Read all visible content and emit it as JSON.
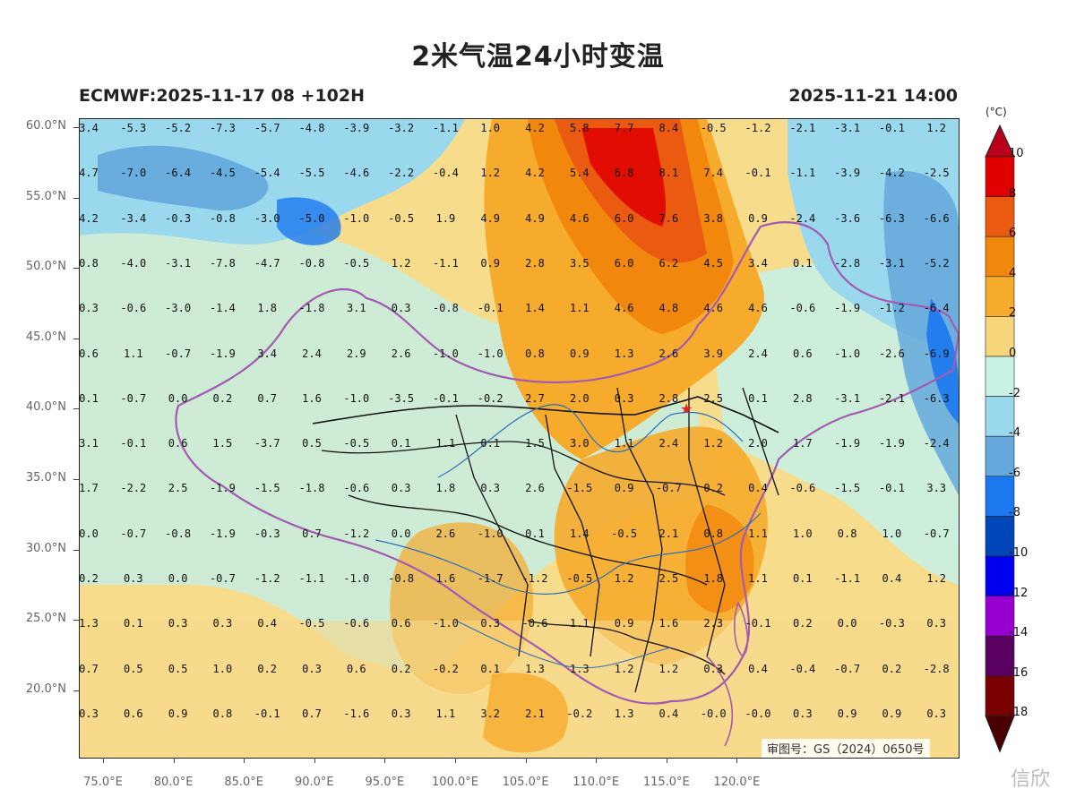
{
  "title": "2米气温24小时变温",
  "run_info": "ECMWF:2025-11-17 08 +102H",
  "valid_time": "2025-11-21 14:00",
  "colorbar": {
    "unit": "(°C)",
    "labels": [
      "10",
      "8",
      "6",
      "4",
      "2",
      "0",
      "-2",
      "-4",
      "-6",
      "-8",
      "-10",
      "-12",
      "-14",
      "-16",
      "-18"
    ],
    "colors": [
      "#b8001a",
      "#e00000",
      "#ea5a10",
      "#f2870e",
      "#f6ab2c",
      "#f7d67c",
      "#c8f2e6",
      "#9ad8ee",
      "#64a8dc",
      "#1c78ee",
      "#0046b8",
      "#0000ee",
      "#9800d0",
      "#5a0060",
      "#780000",
      "#4a0000"
    ]
  },
  "lat_labels": [
    "60.0°N",
    "55.0°N",
    "50.0°N",
    "45.0°N",
    "40.0°N",
    "35.0°N",
    "30.0°N",
    "25.0°N",
    "20.0°N"
  ],
  "lon_labels": [
    "75.0°E",
    "80.0°E",
    "85.0°E",
    "90.0°E",
    "95.0°E",
    "100.0°E",
    "105.0°E",
    "110.0°E",
    "115.0°E",
    "120.0°E"
  ],
  "grid_values": [
    [
      "3.4",
      "-5.3",
      "-5.2",
      "-7.3",
      "-5.7",
      "-4.8",
      "-3.9",
      "-3.2",
      "-1.1",
      "1.0",
      "4.2",
      "5.8",
      "7.7",
      "8.4",
      "-0.5",
      "-1.2",
      "-2.1",
      "-3.1",
      "-0.1",
      "1.2"
    ],
    [
      "4.7",
      "-7.0",
      "-6.4",
      "-4.5",
      "-5.4",
      "-5.5",
      "-4.6",
      "-2.2",
      "-0.4",
      "1.2",
      "4.2",
      "5.4",
      "6.8",
      "8.1",
      "7.4",
      "-0.1",
      "-1.1",
      "-3.9",
      "-4.2",
      "-2.5"
    ],
    [
      "4.2",
      "-3.4",
      "-0.3",
      "-0.8",
      "-3.0",
      "-5.0",
      "-1.0",
      "-0.5",
      "1.9",
      "4.9",
      "4.9",
      "4.6",
      "6.0",
      "7.6",
      "3.8",
      "0.9",
      "-2.4",
      "-3.6",
      "-6.3",
      "-6.6"
    ],
    [
      "0.8",
      "-4.0",
      "-3.1",
      "-7.8",
      "-4.7",
      "-0.8",
      "-0.5",
      "1.2",
      "-1.1",
      "0.9",
      "2.8",
      "3.5",
      "6.0",
      "6.2",
      "4.5",
      "3.4",
      "0.1",
      "-2.8",
      "-3.1",
      "-5.2"
    ],
    [
      "0.3",
      "-0.6",
      "-3.0",
      "-1.4",
      "1.8",
      "-1.8",
      "3.1",
      "0.3",
      "-0.8",
      "-0.1",
      "1.4",
      "1.1",
      "4.6",
      "4.8",
      "4.6",
      "4.6",
      "-0.6",
      "-1.9",
      "-1.2",
      "-6.4"
    ],
    [
      "0.6",
      "1.1",
      "-0.7",
      "-1.9",
      "3.4",
      "2.4",
      "2.9",
      "2.6",
      "-1.0",
      "-1.0",
      "0.8",
      "0.9",
      "1.3",
      "2.6",
      "3.9",
      "2.4",
      "0.6",
      "-1.0",
      "-2.6",
      "-6.9"
    ],
    [
      "0.1",
      "-0.7",
      "0.0",
      "0.2",
      "0.7",
      "1.6",
      "-1.0",
      "-3.5",
      "-0.1",
      "-0.2",
      "2.7",
      "2.0",
      "0.3",
      "2.8",
      "2.5",
      "0.1",
      "2.8",
      "-3.1",
      "-2.1",
      "-6.3"
    ],
    [
      "3.1",
      "-0.1",
      "0.6",
      "1.5",
      "-3.7",
      "0.5",
      "-0.5",
      "0.1",
      "1.1",
      "0.1",
      "1.5",
      "3.0",
      "1.1",
      "2.4",
      "1.2",
      "2.0",
      "1.7",
      "-1.9",
      "-1.9",
      "-2.4"
    ],
    [
      "1.7",
      "-2.2",
      "2.5",
      "-1.9",
      "-1.5",
      "-1.8",
      "-0.6",
      "0.3",
      "1.8",
      "0.3",
      "2.6",
      "-1.5",
      "0.9",
      "-0.7",
      "0.2",
      "0.4",
      "-0.6",
      "-1.5",
      "-0.1",
      "3.3"
    ],
    [
      "0.0",
      "-0.7",
      "-0.8",
      "-1.9",
      "-0.3",
      "0.7",
      "-1.2",
      "0.0",
      "2.6",
      "-1.0",
      "0.1",
      "1.4",
      "-0.5",
      "2.1",
      "0.8",
      "1.1",
      "1.0",
      "0.8",
      "1.0",
      "-0.7"
    ],
    [
      "0.2",
      "0.3",
      "0.0",
      "-0.7",
      "-1.2",
      "-1.1",
      "-1.0",
      "-0.8",
      "1.6",
      "-1.7",
      "-1.2",
      "-0.5",
      "1.2",
      "2.5",
      "1.8",
      "1.1",
      "0.1",
      "-1.1",
      "0.4",
      "1.2"
    ],
    [
      "1.3",
      "0.1",
      "0.3",
      "0.3",
      "0.4",
      "-0.5",
      "-0.6",
      "0.6",
      "-1.0",
      "0.3",
      "-0.6",
      "1.1",
      "0.9",
      "1.6",
      "2.3",
      "-0.1",
      "0.2",
      "0.0",
      "-0.3",
      "0.3"
    ],
    [
      "0.7",
      "0.5",
      "0.5",
      "1.0",
      "0.2",
      "0.3",
      "0.6",
      "0.2",
      "-0.2",
      "0.1",
      "1.3",
      "1.3",
      "1.2",
      "1.2",
      "0.3",
      "0.4",
      "-0.4",
      "-0.7",
      "0.2",
      "-2.8"
    ],
    [
      "0.3",
      "0.6",
      "0.9",
      "0.8",
      "-0.1",
      "0.7",
      "-1.6",
      "0.3",
      "1.1",
      "3.2",
      "2.1",
      "-0.2",
      "1.3",
      "0.4",
      "-0.0",
      "-0.0",
      "0.3",
      "0.9",
      "0.9",
      "0.3"
    ]
  ],
  "approval_number": "审图号：GS（2024）0650号",
  "watermark_text": "信欣",
  "marker": "★"
}
